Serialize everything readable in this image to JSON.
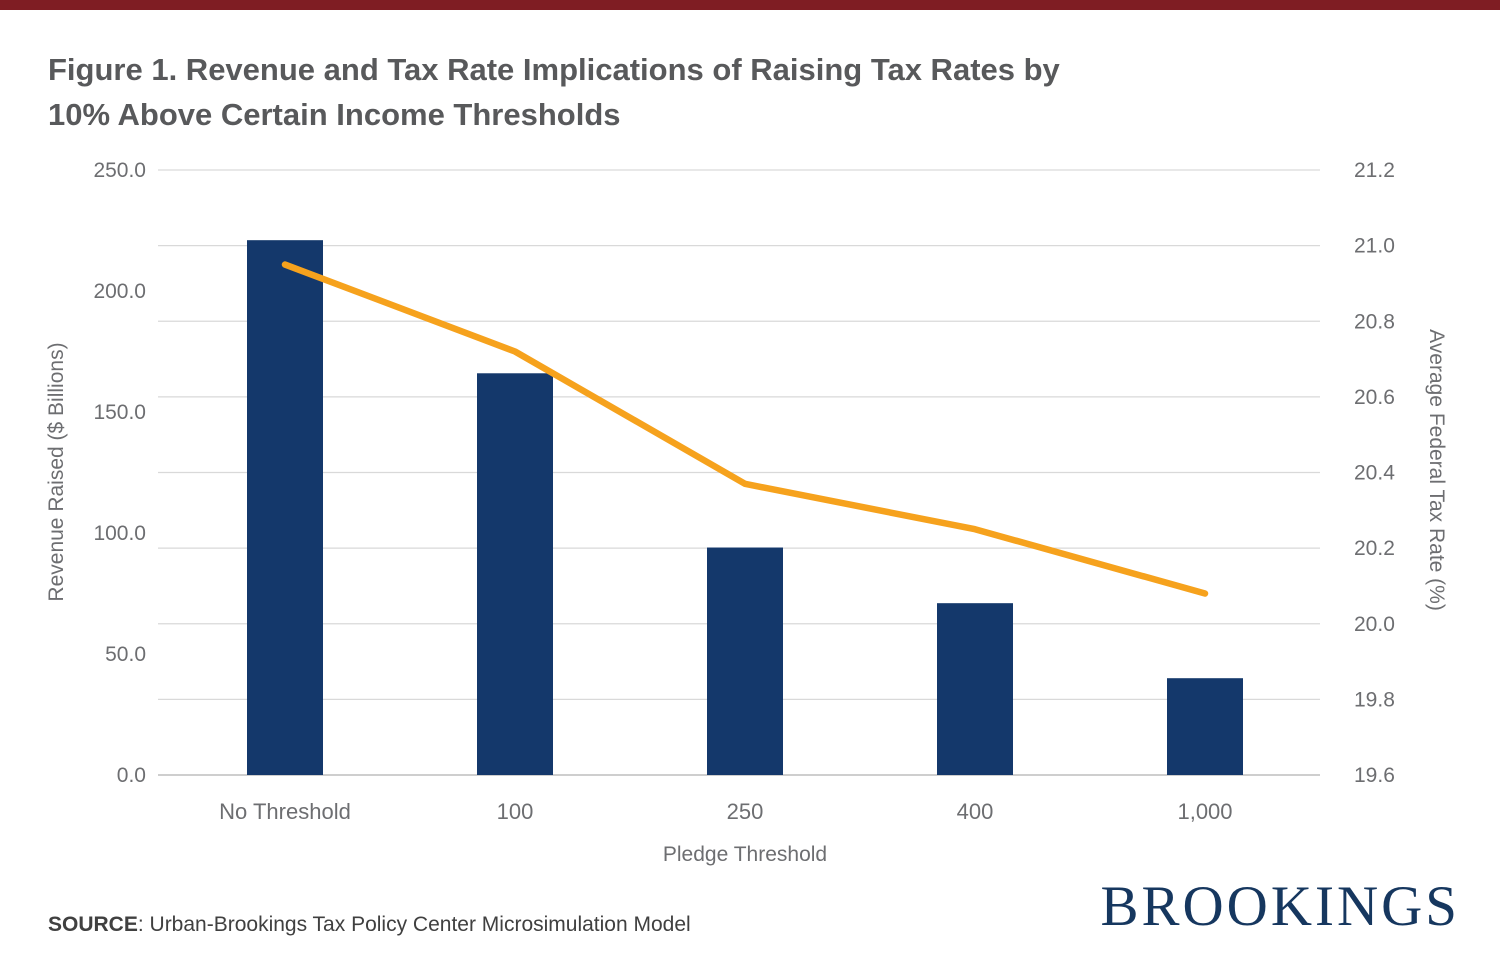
{
  "page": {
    "accent_bar_color": "#7f1d23",
    "title_line1": "Figure 1. Revenue and Tax Rate Implications of Raising Tax Rates by",
    "title_line2": "10% Above Certain Income Thresholds",
    "source_label": "SOURCE",
    "source_text": ": Urban-Brookings Tax Policy Center Microsimulation Model",
    "logo_text": "BROOKINGS"
  },
  "chart_data": {
    "type": "bar",
    "subtype": "bar-and-line-dual-axis",
    "categories": [
      "No Threshold",
      "100",
      "250",
      "400",
      "1,000"
    ],
    "series": [
      {
        "name": "Revenue Raised ($ Billions)",
        "type": "bar",
        "axis": "left",
        "color": "#14386b",
        "values": [
          221,
          166,
          94,
          71,
          40
        ]
      },
      {
        "name": "Average Federal Tax Rate (%)",
        "type": "line",
        "axis": "right",
        "color": "#f6a21d",
        "values": [
          20.95,
          20.72,
          20.37,
          20.25,
          20.08
        ]
      }
    ],
    "xlabel": "Pledge Threshold",
    "left_axis": {
      "label": "Revenue Raised ($ Billions)",
      "min": 0,
      "max": 250,
      "ticks": [
        "0.0",
        "50.0",
        "100.0",
        "150.0",
        "200.0",
        "250.0"
      ]
    },
    "right_axis": {
      "label": "Average Federal Tax Rate (%)",
      "min": 19.6,
      "max": 21.2,
      "ticks": [
        "19.6",
        "19.8",
        "20.0",
        "20.2",
        "20.4",
        "20.6",
        "20.8",
        "21.0",
        "21.2"
      ]
    },
    "grid": true,
    "legend": "none",
    "grid_color": "#d9d9d9",
    "tick_color": "#6d6e71"
  }
}
